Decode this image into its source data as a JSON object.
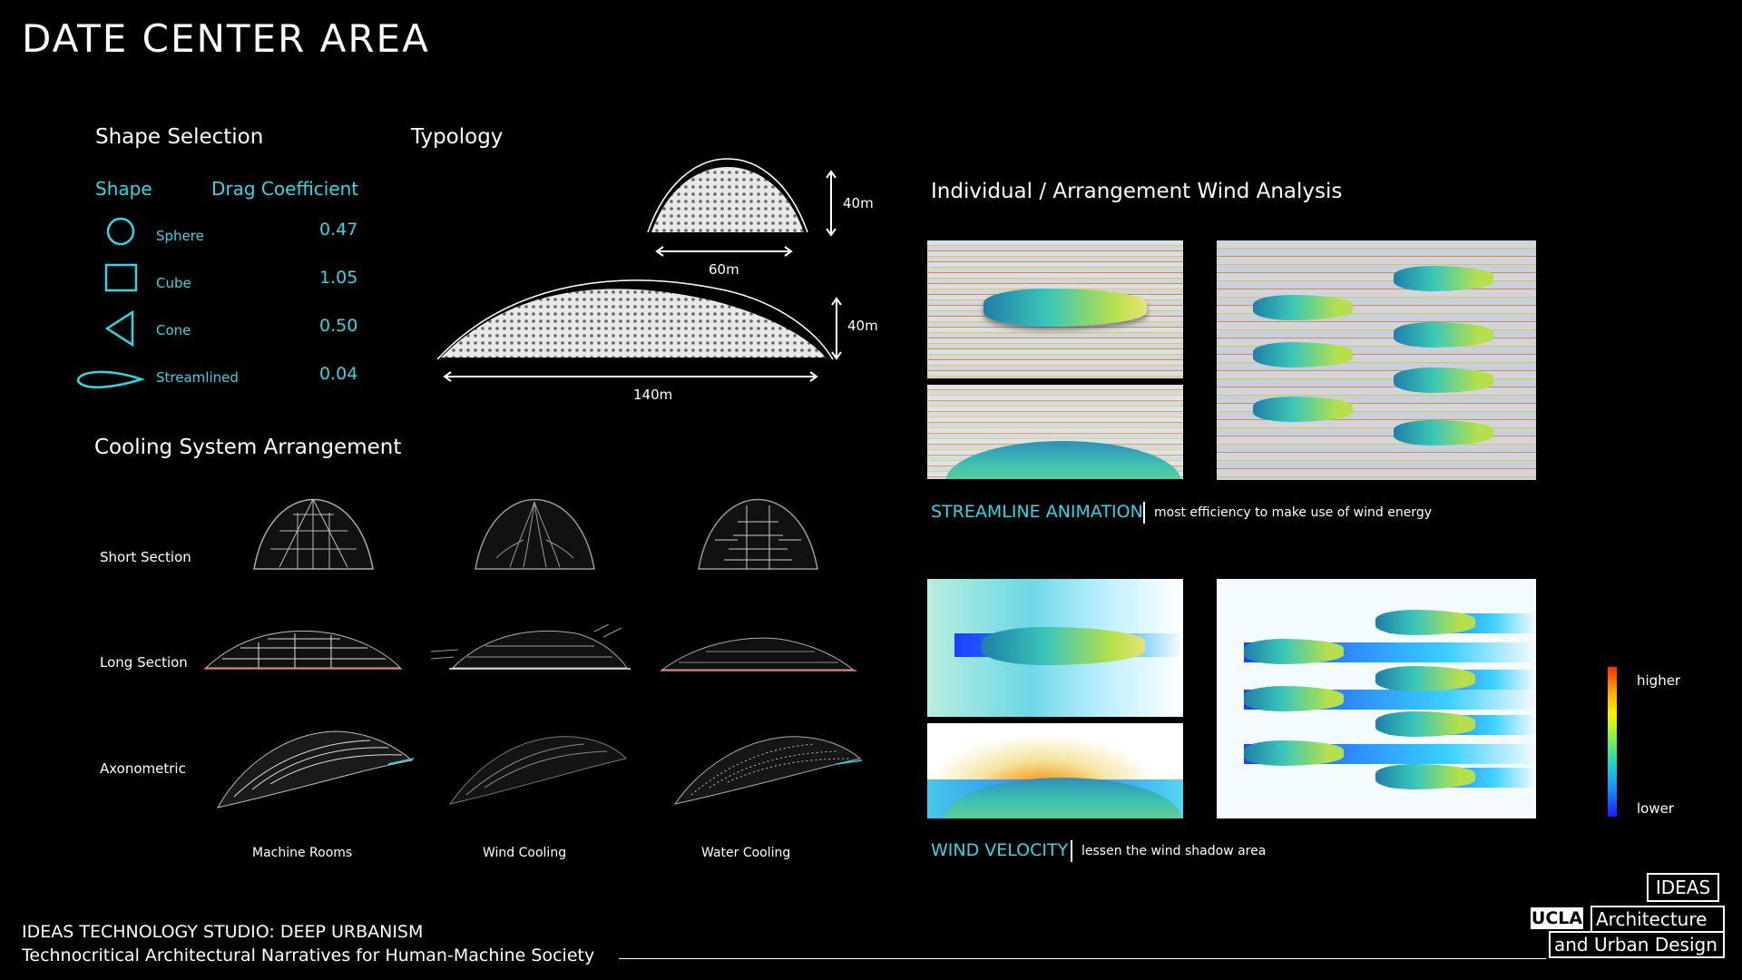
{
  "page": {
    "title": "DATE CENTER AREA"
  },
  "shape_selection": {
    "heading": "Shape Selection",
    "col_shape": "Shape",
    "col_drag": "Drag Coefficient",
    "rows": [
      {
        "icon": "circle-icon",
        "name": "Sphere",
        "value": "0.47"
      },
      {
        "icon": "square-icon",
        "name": "Cube",
        "value": "1.05"
      },
      {
        "icon": "triangle-icon",
        "name": "Cone",
        "value": "0.50"
      },
      {
        "icon": "airfoil-icon",
        "name": "Streamlined",
        "value": "0.04"
      }
    ]
  },
  "typology": {
    "heading": "Typology",
    "small_height": "40m",
    "small_width": "60m",
    "large_height": "40m",
    "large_width": "140m"
  },
  "cooling": {
    "heading": "Cooling System Arrangement",
    "rows": [
      "Short Section",
      "Long Section",
      "Axonometric"
    ],
    "columns": [
      "Machine Rooms",
      "Wind Cooling",
      "Water Cooling"
    ]
  },
  "wind": {
    "heading": "Individual / Arrangement Wind Analysis",
    "streamline_label": "STREAMLINE ANIMATION",
    "streamline_desc": "most efficiency to make use of wind energy",
    "velocity_label": "WIND VELOCITY",
    "velocity_desc": "lessen the wind shadow area",
    "legend_high": "higher",
    "legend_low": "lower"
  },
  "footer": {
    "line1": "IDEAS TECHNOLOGY STUDIO: DEEP URBANISM",
    "line2": "Technocritical Architectural Narratives for Human-Machine Society"
  },
  "logo": {
    "ideas": "IDEAS",
    "ucla": "UCLA",
    "dept1": "Architecture",
    "dept2": "and Urban Design"
  },
  "colors": {
    "accent": "#33d6e6",
    "background": "#000000"
  }
}
